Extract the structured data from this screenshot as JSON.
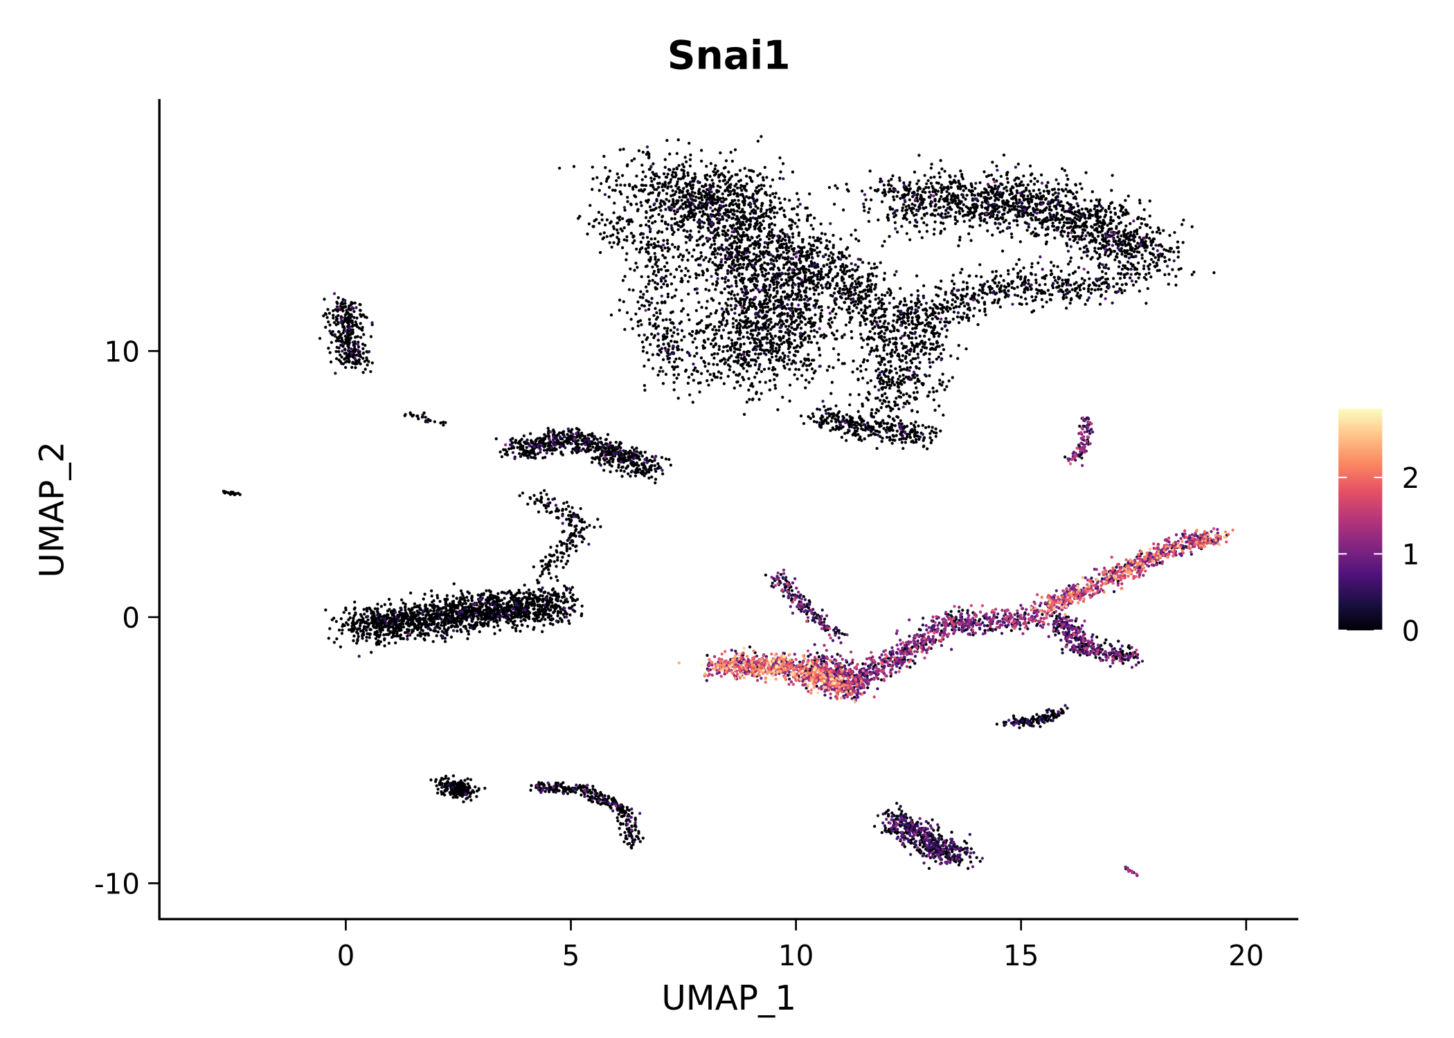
{
  "chart_data": {
    "type": "scatter",
    "title": "Snai1",
    "xlabel": "UMAP_1",
    "ylabel": "UMAP_2",
    "xlim": [
      -4.2,
      21.1
    ],
    "ylim": [
      -11.5,
      19.3
    ],
    "xticks": [
      0,
      5,
      10,
      15,
      20
    ],
    "xtick_labels": [
      "0",
      "5",
      "10",
      "15",
      "20"
    ],
    "yticks": [
      -10,
      0,
      10
    ],
    "ytick_labels": [
      "-10",
      "0",
      "10"
    ],
    "grid": false,
    "colorbar": {
      "position": "right",
      "range": [
        0,
        2.9
      ],
      "ticks": [
        0,
        1,
        2
      ],
      "tick_labels": [
        "0",
        "1",
        "2"
      ],
      "colormap": [
        "#000004",
        "#1c1044",
        "#4f127b",
        "#812581",
        "#b5367a",
        "#e55064",
        "#fb8761",
        "#fec287",
        "#fcfdbf"
      ]
    },
    "clusters": [
      {
        "name": "top-left-mass",
        "path": [
          [
            6.8,
            16.3
          ],
          [
            8.5,
            15.5
          ],
          [
            9.3,
            12.5
          ],
          [
            9.5,
            10.5
          ],
          [
            8.5,
            9.5
          ]
        ],
        "width": 1.6,
        "count": 2400,
        "expr": 0.05
      },
      {
        "name": "top-left-arm",
        "path": [
          [
            5.6,
            15
          ],
          [
            7,
            13.5
          ],
          [
            6.8,
            11.5
          ],
          [
            7.3,
            9
          ]
        ],
        "width": 0.6,
        "count": 300,
        "expr": 0.05
      },
      {
        "name": "top-middle",
        "path": [
          [
            10,
            14
          ],
          [
            11.5,
            12
          ],
          [
            12.5,
            10.5
          ],
          [
            12.2,
            8
          ]
        ],
        "width": 1.0,
        "count": 900,
        "expr": 0.05
      },
      {
        "name": "top-right-mass",
        "path": [
          [
            12,
            15.5
          ],
          [
            14.5,
            15.8
          ],
          [
            16.5,
            15
          ],
          [
            17.9,
            13.2
          ]
        ],
        "width": 1.1,
        "count": 1500,
        "expr": 0.06
      },
      {
        "name": "top-right-lower",
        "path": [
          [
            12.5,
            11
          ],
          [
            14.5,
            12.5
          ],
          [
            17,
            12.5
          ]
        ],
        "width": 0.8,
        "count": 500,
        "expr": 0.05
      },
      {
        "name": "top-bottom-blob",
        "path": [
          [
            10.5,
            7.5
          ],
          [
            12,
            7
          ],
          [
            12.8,
            6.8
          ]
        ],
        "width": 0.5,
        "count": 300,
        "expr": 0.1
      },
      {
        "name": "left-top",
        "path": [
          [
            0,
            11.8
          ],
          [
            0,
            10.8
          ],
          [
            0.2,
            9.5
          ]
        ],
        "width": 0.4,
        "count": 320,
        "expr": 0.08
      },
      {
        "name": "tiny-left",
        "path": [
          [
            -2.7,
            4.7
          ],
          [
            -2.4,
            4.6
          ]
        ],
        "width": 0.08,
        "count": 20,
        "expr": 0.0
      },
      {
        "name": "small-line",
        "path": [
          [
            1.3,
            7.7
          ],
          [
            2.3,
            7.2
          ]
        ],
        "width": 0.12,
        "count": 25,
        "expr": 0.0
      },
      {
        "name": "mid-cluster",
        "path": [
          [
            3.8,
            6.3
          ],
          [
            5,
            6.7
          ],
          [
            6.8,
            5.6
          ]
        ],
        "width": 0.45,
        "count": 650,
        "expr": 0.12
      },
      {
        "name": "mid-trail",
        "path": [
          [
            4.2,
            4.5
          ],
          [
            5.2,
            3.5
          ],
          [
            4.8,
            2.5
          ],
          [
            4.3,
            1.5
          ]
        ],
        "width": 0.35,
        "count": 180,
        "expr": 0.05
      },
      {
        "name": "left-big",
        "path": [
          [
            0.3,
            -0.3
          ],
          [
            1.2,
            -0.2
          ],
          [
            2.8,
            0.2
          ],
          [
            4.8,
            0.5
          ]
        ],
        "width": 0.7,
        "count": 1600,
        "expr": 0.04
      },
      {
        "name": "expr-spike",
        "path": [
          [
            9.5,
            1.6
          ],
          [
            10.3,
            0.2
          ],
          [
            11,
            -0.8
          ]
        ],
        "width": 0.25,
        "count": 180,
        "expr": 0.7
      },
      {
        "name": "expr-left-arm",
        "path": [
          [
            8.2,
            -1.8
          ],
          [
            9.5,
            -1.8
          ],
          [
            10.5,
            -2.2
          ],
          [
            11.2,
            -2.8
          ]
        ],
        "width": 0.45,
        "count": 900,
        "expr": 1.4
      },
      {
        "name": "expr-valley",
        "path": [
          [
            10.5,
            -1.5
          ],
          [
            11.3,
            -2.5
          ],
          [
            12.5,
            -1.2
          ],
          [
            13.5,
            -0.2
          ],
          [
            15.5,
            0
          ]
        ],
        "width": 0.45,
        "count": 900,
        "expr": 0.9
      },
      {
        "name": "expr-right-up",
        "path": [
          [
            15.5,
            0.3
          ],
          [
            17,
            1.5
          ],
          [
            18.5,
            2.7
          ],
          [
            19.4,
            3
          ]
        ],
        "width": 0.35,
        "count": 700,
        "expr": 1.3
      },
      {
        "name": "expr-right-down",
        "path": [
          [
            15.8,
            0
          ],
          [
            16.4,
            -1.2
          ],
          [
            17.5,
            -1.5
          ]
        ],
        "width": 0.35,
        "count": 350,
        "expr": 0.7
      },
      {
        "name": "small-lower-right",
        "path": [
          [
            14.6,
            -4
          ],
          [
            15.4,
            -3.9
          ],
          [
            15.9,
            -3.5
          ]
        ],
        "width": 0.2,
        "count": 120,
        "expr": 0.3
      },
      {
        "name": "small-upper-right",
        "path": [
          [
            16.5,
            7.5
          ],
          [
            16.4,
            6.5
          ],
          [
            16.1,
            5.8
          ]
        ],
        "width": 0.15,
        "count": 90,
        "expr": 0.9
      },
      {
        "name": "bottom-left",
        "path": [
          [
            2.2,
            -6.3
          ],
          [
            2.7,
            -6.6
          ]
        ],
        "width": 0.3,
        "count": 220,
        "expr": 0.05
      },
      {
        "name": "bottom-arc",
        "path": [
          [
            4.2,
            -6.4
          ],
          [
            5.3,
            -6.5
          ],
          [
            6.2,
            -7.3
          ],
          [
            6.4,
            -8.5
          ]
        ],
        "width": 0.2,
        "count": 300,
        "expr": 0.15
      },
      {
        "name": "bottom-blob",
        "path": [
          [
            12.2,
            -7.5
          ],
          [
            13,
            -8.6
          ],
          [
            13.7,
            -9
          ]
        ],
        "width": 0.45,
        "count": 500,
        "expr": 0.5
      },
      {
        "name": "bottom-tiny",
        "path": [
          [
            17.3,
            -9.4
          ],
          [
            17.6,
            -9.7
          ]
        ],
        "width": 0.05,
        "count": 15,
        "expr": 1.0
      }
    ]
  }
}
